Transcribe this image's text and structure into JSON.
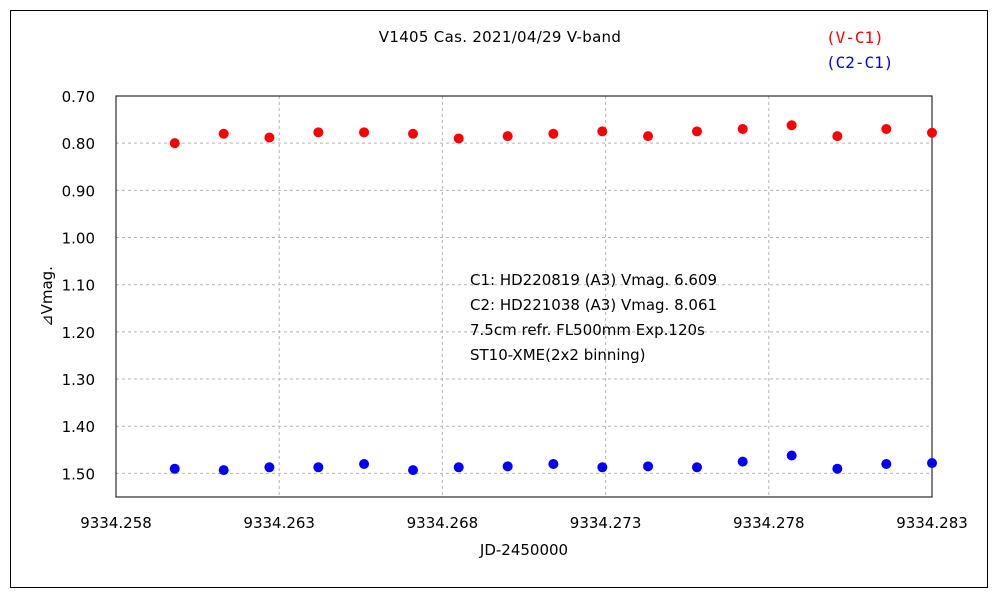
{
  "chart_data": {
    "type": "scatter",
    "title": "V1405 Cas.   2021/04/29   V-band",
    "xlabel": "JD-2450000",
    "ylabel": "⊿Vmag.",
    "xlim": [
      9334.258,
      9334.283
    ],
    "ylim": [
      0.7,
      1.55
    ],
    "y_inverted": true,
    "grid": true,
    "legend_position": "top-right",
    "x_ticks": [
      "9334.258",
      "9334.263",
      "9334.268",
      "9334.273",
      "9334.278",
      "9334.283"
    ],
    "y_ticks": [
      "0.70",
      "0.80",
      "0.90",
      "1.00",
      "1.10",
      "1.20",
      "1.30",
      "1.40",
      "1.50"
    ],
    "x_tick_values": [
      9334.258,
      9334.263,
      9334.268,
      9334.273,
      9334.278,
      9334.283
    ],
    "y_tick_values": [
      0.7,
      0.8,
      0.9,
      1.0,
      1.1,
      1.2,
      1.3,
      1.4,
      1.5
    ],
    "x": [
      9334.2598,
      9334.2613,
      9334.2627,
      9334.2642,
      9334.2656,
      9334.2671,
      9334.2685,
      9334.27,
      9334.2714,
      9334.2729,
      9334.2743,
      9334.2758,
      9334.2772,
      9334.2787,
      9334.2801,
      9334.2816,
      9334.283
    ],
    "series": [
      {
        "name": "(V-C1)",
        "color": "#ff0000",
        "values": [
          0.8,
          0.78,
          0.788,
          0.777,
          0.777,
          0.78,
          0.79,
          0.785,
          0.78,
          0.775,
          0.785,
          0.775,
          0.77,
          0.762,
          0.785,
          0.77,
          0.778
        ]
      },
      {
        "name": "(C2-C1)",
        "color": "#0000ff",
        "values": [
          1.49,
          1.493,
          1.487,
          1.487,
          1.48,
          1.493,
          1.487,
          1.485,
          1.48,
          1.487,
          1.485,
          1.487,
          1.475,
          1.462,
          1.49,
          1.48,
          1.478
        ]
      }
    ],
    "annotations": [
      "C1: HD220819 (A3) Vmag. 6.609",
      "C2: HD221038 (A3) Vmag. 8.061",
      "7.5cm refr. FL500mm  Exp.120s",
      "ST10-XME(2x2 binning)"
    ]
  }
}
